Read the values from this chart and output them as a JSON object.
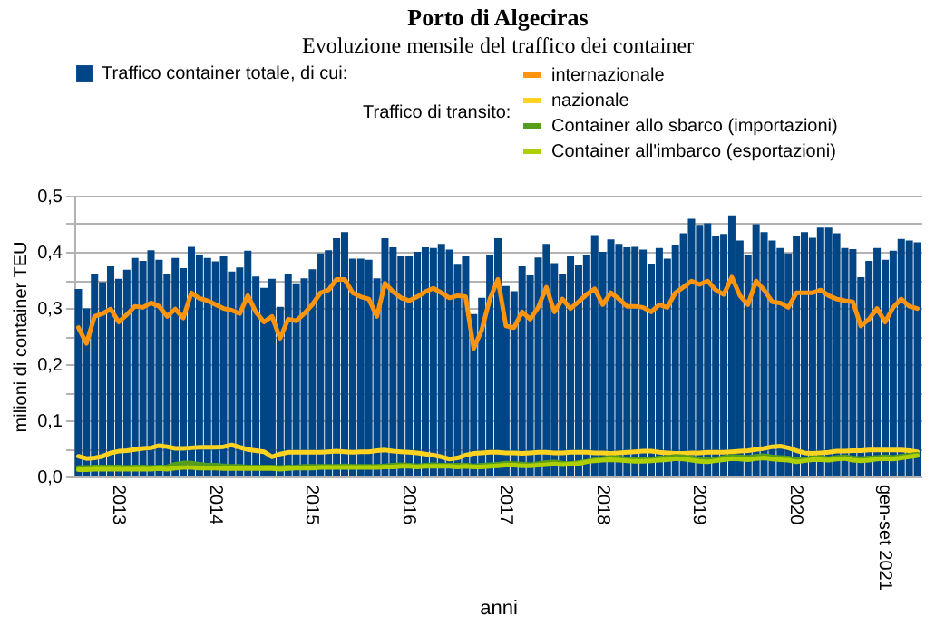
{
  "chart_data": {
    "type": "bar",
    "title": "Porto di Algeciras",
    "subtitle": "Evoluzione mensile del traffico dei container",
    "xlabel": "anni",
    "ylabel": "milioni di container TEU",
    "legend_title": "Traffico di transito:",
    "legend": "top",
    "grid": "y",
    "categories": [
      null,
      null,
      null,
      null,
      null,
      "2013",
      null,
      null,
      null,
      null,
      null,
      null,
      null,
      null,
      null,
      null,
      null,
      "2014",
      null,
      null,
      null,
      null,
      null,
      null,
      null,
      null,
      null,
      null,
      null,
      "2015",
      null,
      null,
      null,
      null,
      null,
      null,
      null,
      null,
      null,
      null,
      null,
      "2016",
      null,
      null,
      null,
      null,
      null,
      null,
      null,
      null,
      null,
      null,
      null,
      "2017",
      null,
      null,
      null,
      null,
      null,
      null,
      null,
      null,
      null,
      null,
      null,
      "2018",
      null,
      null,
      null,
      null,
      null,
      null,
      null,
      null,
      null,
      null,
      null,
      "2019",
      null,
      null,
      null,
      null,
      null,
      null,
      null,
      null,
      null,
      null,
      null,
      "2020",
      null,
      null,
      null,
      null,
      null,
      null,
      null,
      null,
      null,
      null,
      "gen-set 2021",
      null,
      null,
      null,
      null
    ],
    "ylim": [
      0,
      0.5
    ],
    "yticks": [
      {
        "value": 0,
        "label": "0,0"
      },
      {
        "value": 0.05,
        "label": null
      },
      {
        "value": 0.1,
        "label": "0,1"
      },
      {
        "value": 0.15,
        "label": null
      },
      {
        "value": 0.2,
        "label": "0,2"
      },
      {
        "value": 0.25,
        "label": null
      },
      {
        "value": 0.3,
        "label": "0,3"
      },
      {
        "value": 0.35,
        "label": null
      },
      {
        "value": 0.4,
        "label": "0,4"
      },
      {
        "value": 0.45,
        "label": null
      },
      {
        "value": 0.5,
        "label": "0,5"
      }
    ],
    "series": [
      {
        "name": "Traffico container totale, di cui:",
        "type": "bar",
        "color": "#004586",
        "values": [
          0.334,
          0.299,
          0.361,
          0.346,
          0.374,
          0.352,
          0.368,
          0.389,
          0.384,
          0.403,
          0.386,
          0.361,
          0.389,
          0.371,
          0.409,
          0.395,
          0.389,
          0.383,
          0.392,
          0.365,
          0.372,
          0.402,
          0.356,
          0.336,
          0.352,
          0.302,
          0.361,
          0.344,
          0.353,
          0.369,
          0.397,
          0.403,
          0.424,
          0.435,
          0.388,
          0.388,
          0.386,
          0.353,
          0.424,
          0.408,
          0.392,
          0.392,
          0.4,
          0.408,
          0.407,
          0.414,
          0.404,
          0.377,
          0.392,
          0.289,
          0.318,
          0.395,
          0.424,
          0.339,
          0.33,
          0.374,
          0.358,
          0.39,
          0.414,
          0.38,
          0.36,
          0.392,
          0.376,
          0.395,
          0.43,
          0.4,
          0.422,
          0.414,
          0.408,
          0.409,
          0.404,
          0.378,
          0.407,
          0.388,
          0.413,
          0.433,
          0.459,
          0.448,
          0.451,
          0.428,
          0.432,
          0.465,
          0.42,
          0.394,
          0.449,
          0.435,
          0.42,
          0.407,
          0.397,
          0.428,
          0.435,
          0.425,
          0.443,
          0.443,
          0.433,
          0.407,
          0.405,
          0.355,
          0.384,
          0.407,
          0.386,
          0.402,
          0.423,
          0.42,
          0.417
        ]
      },
      {
        "name": "internazionale",
        "type": "line",
        "color": "#ff950e",
        "values": [
          0.265,
          0.237,
          0.285,
          0.29,
          0.298,
          0.275,
          0.288,
          0.303,
          0.301,
          0.309,
          0.303,
          0.285,
          0.298,
          0.282,
          0.327,
          0.317,
          0.313,
          0.306,
          0.299,
          0.296,
          0.29,
          0.322,
          0.293,
          0.275,
          0.285,
          0.246,
          0.28,
          0.277,
          0.29,
          0.306,
          0.327,
          0.332,
          0.351,
          0.351,
          0.327,
          0.32,
          0.316,
          0.285,
          0.344,
          0.329,
          0.318,
          0.313,
          0.32,
          0.329,
          0.335,
          0.327,
          0.318,
          0.322,
          0.32,
          0.228,
          0.261,
          0.316,
          0.351,
          0.268,
          0.265,
          0.293,
          0.28,
          0.301,
          0.337,
          0.293,
          0.316,
          0.299,
          0.311,
          0.324,
          0.334,
          0.306,
          0.327,
          0.316,
          0.303,
          0.303,
          0.301,
          0.293,
          0.306,
          0.301,
          0.327,
          0.337,
          0.348,
          0.342,
          0.348,
          0.332,
          0.324,
          0.355,
          0.322,
          0.306,
          0.348,
          0.332,
          0.311,
          0.309,
          0.301,
          0.327,
          0.327,
          0.327,
          0.332,
          0.322,
          0.316,
          0.313,
          0.311,
          0.268,
          0.28,
          0.299,
          0.275,
          0.301,
          0.316,
          0.303,
          0.299
        ]
      },
      {
        "name": "nazionale",
        "type": "line",
        "color": "#ffd320",
        "values": [
          0.036,
          0.032,
          0.033,
          0.036,
          0.042,
          0.045,
          0.046,
          0.048,
          0.05,
          0.051,
          0.055,
          0.053,
          0.05,
          0.05,
          0.051,
          0.052,
          0.052,
          0.052,
          0.053,
          0.056,
          0.052,
          0.048,
          0.046,
          0.044,
          0.035,
          0.04,
          0.043,
          0.043,
          0.043,
          0.043,
          0.043,
          0.044,
          0.045,
          0.044,
          0.043,
          0.044,
          0.044,
          0.046,
          0.047,
          0.045,
          0.044,
          0.043,
          0.042,
          0.04,
          0.038,
          0.035,
          0.031,
          0.033,
          0.038,
          0.041,
          0.042,
          0.043,
          0.043,
          0.042,
          0.042,
          0.041,
          0.042,
          0.043,
          0.043,
          0.042,
          0.042,
          0.043,
          0.043,
          0.043,
          0.042,
          0.042,
          0.041,
          0.042,
          0.043,
          0.044,
          0.045,
          0.045,
          0.043,
          0.042,
          0.041,
          0.041,
          0.042,
          0.042,
          0.043,
          0.043,
          0.043,
          0.044,
          0.045,
          0.046,
          0.048,
          0.05,
          0.053,
          0.054,
          0.051,
          0.046,
          0.042,
          0.041,
          0.042,
          0.043,
          0.045,
          0.045,
          0.046,
          0.046,
          0.047,
          0.047,
          0.047,
          0.047,
          0.047,
          0.046,
          0.044
        ]
      },
      {
        "name": "Container allo sbarco (importazioni)",
        "type": "line",
        "color": "#579d1c",
        "values": [
          0.016,
          0.016,
          0.017,
          0.017,
          0.017,
          0.017,
          0.016,
          0.017,
          0.017,
          0.016,
          0.017,
          0.017,
          0.022,
          0.024,
          0.024,
          0.022,
          0.02,
          0.02,
          0.019,
          0.018,
          0.018,
          0.017,
          0.017,
          0.017,
          0.017,
          0.016,
          0.017,
          0.017,
          0.018,
          0.018,
          0.018,
          0.018,
          0.018,
          0.019,
          0.018,
          0.018,
          0.018,
          0.018,
          0.019,
          0.02,
          0.021,
          0.02,
          0.019,
          0.02,
          0.021,
          0.02,
          0.02,
          0.02,
          0.02,
          0.019,
          0.02,
          0.021,
          0.022,
          0.024,
          0.023,
          0.022,
          0.021,
          0.023,
          0.025,
          0.026,
          0.024,
          0.023,
          0.025,
          0.027,
          0.03,
          0.032,
          0.034,
          0.033,
          0.031,
          0.03,
          0.03,
          0.031,
          0.033,
          0.034,
          0.036,
          0.035,
          0.033,
          0.031,
          0.03,
          0.031,
          0.034,
          0.036,
          0.035,
          0.034,
          0.036,
          0.037,
          0.035,
          0.034,
          0.033,
          0.03,
          0.031,
          0.033,
          0.034,
          0.032,
          0.034,
          0.035,
          0.033,
          0.032,
          0.033,
          0.034,
          0.035,
          0.034,
          0.036,
          0.038,
          0.04
        ]
      },
      {
        "name": "Container all'imbarco (esportazioni)",
        "type": "line",
        "color": "#aecf00",
        "values": [
          0.012,
          0.012,
          0.013,
          0.013,
          0.013,
          0.013,
          0.013,
          0.013,
          0.013,
          0.013,
          0.014,
          0.013,
          0.015,
          0.016,
          0.016,
          0.015,
          0.015,
          0.015,
          0.014,
          0.014,
          0.014,
          0.014,
          0.014,
          0.014,
          0.014,
          0.013,
          0.014,
          0.015,
          0.015,
          0.015,
          0.016,
          0.016,
          0.016,
          0.016,
          0.016,
          0.016,
          0.016,
          0.016,
          0.017,
          0.017,
          0.018,
          0.018,
          0.017,
          0.018,
          0.018,
          0.018,
          0.018,
          0.017,
          0.018,
          0.017,
          0.017,
          0.018,
          0.019,
          0.02,
          0.02,
          0.019,
          0.019,
          0.02,
          0.021,
          0.022,
          0.021,
          0.022,
          0.023,
          0.026,
          0.028,
          0.029,
          0.03,
          0.029,
          0.028,
          0.027,
          0.027,
          0.028,
          0.029,
          0.03,
          0.032,
          0.031,
          0.029,
          0.027,
          0.026,
          0.028,
          0.03,
          0.032,
          0.031,
          0.03,
          0.032,
          0.033,
          0.031,
          0.03,
          0.029,
          0.026,
          0.028,
          0.03,
          0.03,
          0.029,
          0.031,
          0.032,
          0.029,
          0.028,
          0.029,
          0.031,
          0.032,
          0.031,
          0.033,
          0.035,
          0.037
        ]
      }
    ]
  }
}
